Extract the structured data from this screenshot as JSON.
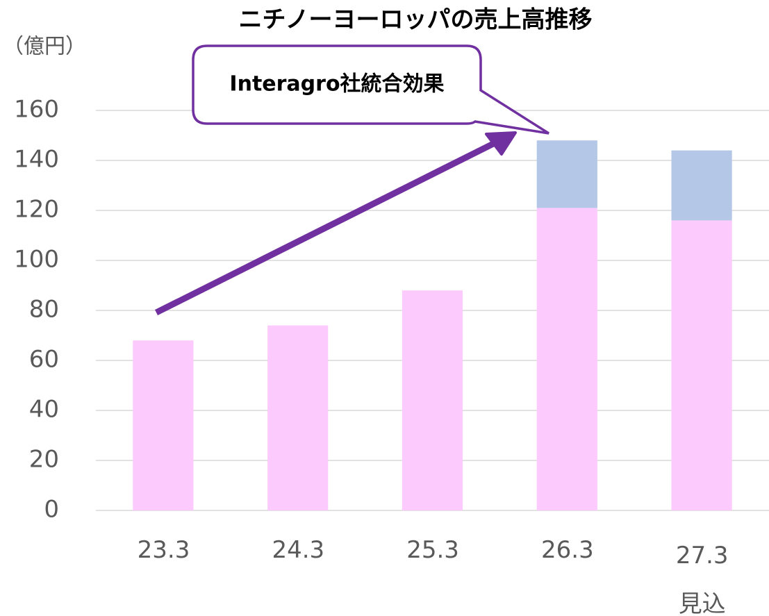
{
  "chart_data": {
    "type": "stacked_bar",
    "title": "ニチノーヨーロッパの売上高推移",
    "unit_label": "（億円）",
    "annotation": "Interagro社統合効果",
    "categories": [
      "23.3",
      "24.3",
      "25.3",
      "26.3",
      "27.3\n見込"
    ],
    "series": [
      {
        "color": "#fccafc",
        "values": [
          68,
          74,
          88,
          121,
          116
        ]
      },
      {
        "color": "#b4c7e7",
        "values": [
          null,
          null,
          null,
          27,
          28
        ]
      }
    ],
    "ylim": [
      0,
      160
    ],
    "yticks": [
      0,
      20,
      40,
      60,
      80,
      100,
      120,
      140,
      160
    ],
    "grid": true
  }
}
